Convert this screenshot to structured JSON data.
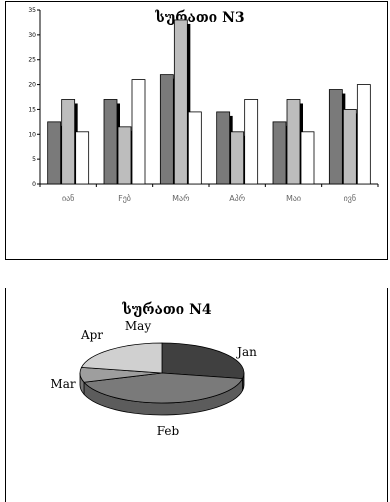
{
  "chart_data": [
    {
      "type": "bar",
      "title": "სურათი N3",
      "categories": [
        "იან",
        "Fებ",
        "Mარ",
        "Aპრ",
        "Mაი",
        "ივნ"
      ],
      "series": [
        {
          "values": [
            12.5,
            17,
            22,
            14.5,
            12.5,
            19
          ]
        },
        {
          "values": [
            17,
            11.5,
            33,
            10.5,
            17,
            15
          ]
        },
        {
          "values": [
            10.5,
            21,
            14.5,
            17,
            10.5,
            20
          ]
        }
      ],
      "colors": [
        "#7a7a7a",
        "#bdbdbd",
        "#ffffff"
      ],
      "shadow_color": "#000000",
      "ylim": [
        0,
        35
      ],
      "yticks": [
        0,
        5,
        10,
        15,
        20,
        25,
        30,
        35
      ]
    },
    {
      "type": "pie",
      "title": "სურათი N4",
      "labels": [
        "Jan",
        "Feb",
        "Mar",
        "Apr",
        "May"
      ],
      "values": [
        28,
        42,
        8,
        22,
        0
      ],
      "colors": [
        "#404040",
        "#7a7a7a",
        "#9e9e9e",
        "#d0d0d0",
        "#ffffff"
      ]
    }
  ]
}
